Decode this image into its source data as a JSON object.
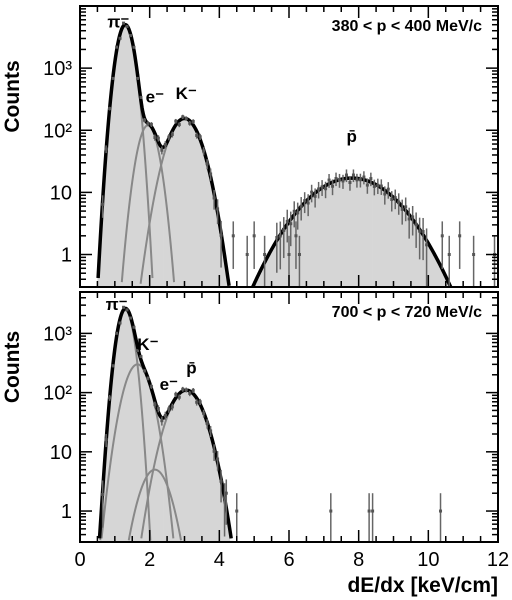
{
  "chart_data": [
    {
      "type": "histogram",
      "panel": "top",
      "title": "380 < p < 400 MeV/c",
      "xlabel": "dE/dx [keV/cm]",
      "ylabel": "Counts",
      "xlim": [
        0,
        12
      ],
      "ylim": [
        0.3,
        10000
      ],
      "log_y": true,
      "x_ticks": [
        "0",
        "2",
        "4",
        "6",
        "8",
        "10",
        "12"
      ],
      "y_ticks": [
        "1",
        "10",
        "10²",
        "10³"
      ],
      "annotations": [
        {
          "text": "π⁻",
          "x": 1.1,
          "y": 4500
        },
        {
          "text": "e⁻",
          "x": 2.15,
          "y": 280
        },
        {
          "text": "K⁻",
          "x": 3.05,
          "y": 320
        },
        {
          "text": "p̄",
          "x": 7.8,
          "y": 65
        }
      ],
      "series": [
        {
          "mean": 1.3,
          "sigma": 0.18,
          "amplitude": 5000,
          "color": "#888888"
        },
        {
          "mean": 1.95,
          "sigma": 0.22,
          "amplitude": 120,
          "color": "#888888"
        },
        {
          "mean": 3.0,
          "sigma": 0.36,
          "amplitude": 155,
          "color": "#888888"
        },
        {
          "mean": 7.8,
          "sigma": 1.0,
          "amplitude": 17,
          "color": "#000000"
        }
      ],
      "outliers": [
        {
          "x": 4.4,
          "y": 2
        },
        {
          "x": 4.8,
          "y": 1
        },
        {
          "x": 5.0,
          "y": 2
        },
        {
          "x": 5.3,
          "y": 1
        },
        {
          "x": 6.0,
          "y": 1
        },
        {
          "x": 6.2,
          "y": 2
        },
        {
          "x": 6.3,
          "y": 1
        },
        {
          "x": 10.4,
          "y": 2
        },
        {
          "x": 10.6,
          "y": 1
        },
        {
          "x": 10.9,
          "y": 2
        },
        {
          "x": 11.3,
          "y": 1
        },
        {
          "x": 11.9,
          "y": 1
        }
      ]
    },
    {
      "type": "histogram",
      "panel": "bottom",
      "title": "700 < p < 720 MeV/c",
      "xlabel": "dE/dx [keV/cm]",
      "ylabel": "Counts",
      "xlim": [
        0,
        12
      ],
      "ylim": [
        0.3,
        5000
      ],
      "log_y": true,
      "x_ticks": [
        "0",
        "2",
        "4",
        "6",
        "8",
        "10",
        "12"
      ],
      "y_ticks": [
        "1",
        "10",
        "10²",
        "10³"
      ],
      "annotations": [
        {
          "text": "π⁻",
          "x": 1.05,
          "y": 2500
        },
        {
          "text": "K⁻",
          "x": 1.95,
          "y": 520
        },
        {
          "text": "e⁻",
          "x": 2.55,
          "y": 110
        },
        {
          "text": "p̄",
          "x": 3.2,
          "y": 210
        }
      ],
      "series": [
        {
          "mean": 1.3,
          "sigma": 0.17,
          "amplitude": 2500,
          "color": "#888888"
        },
        {
          "mean": 1.65,
          "sigma": 0.28,
          "amplitude": 300,
          "color": "#888888"
        },
        {
          "mean": 2.15,
          "sigma": 0.32,
          "amplitude": 5,
          "color": "#888888"
        },
        {
          "mean": 3.05,
          "sigma": 0.38,
          "amplitude": 110,
          "color": "#888888"
        }
      ],
      "outliers": [
        {
          "x": 4.2,
          "y": 2
        },
        {
          "x": 4.5,
          "y": 1
        },
        {
          "x": 7.2,
          "y": 1
        },
        {
          "x": 8.3,
          "y": 1
        },
        {
          "x": 8.4,
          "y": 1
        },
        {
          "x": 10.35,
          "y": 1
        }
      ]
    }
  ]
}
